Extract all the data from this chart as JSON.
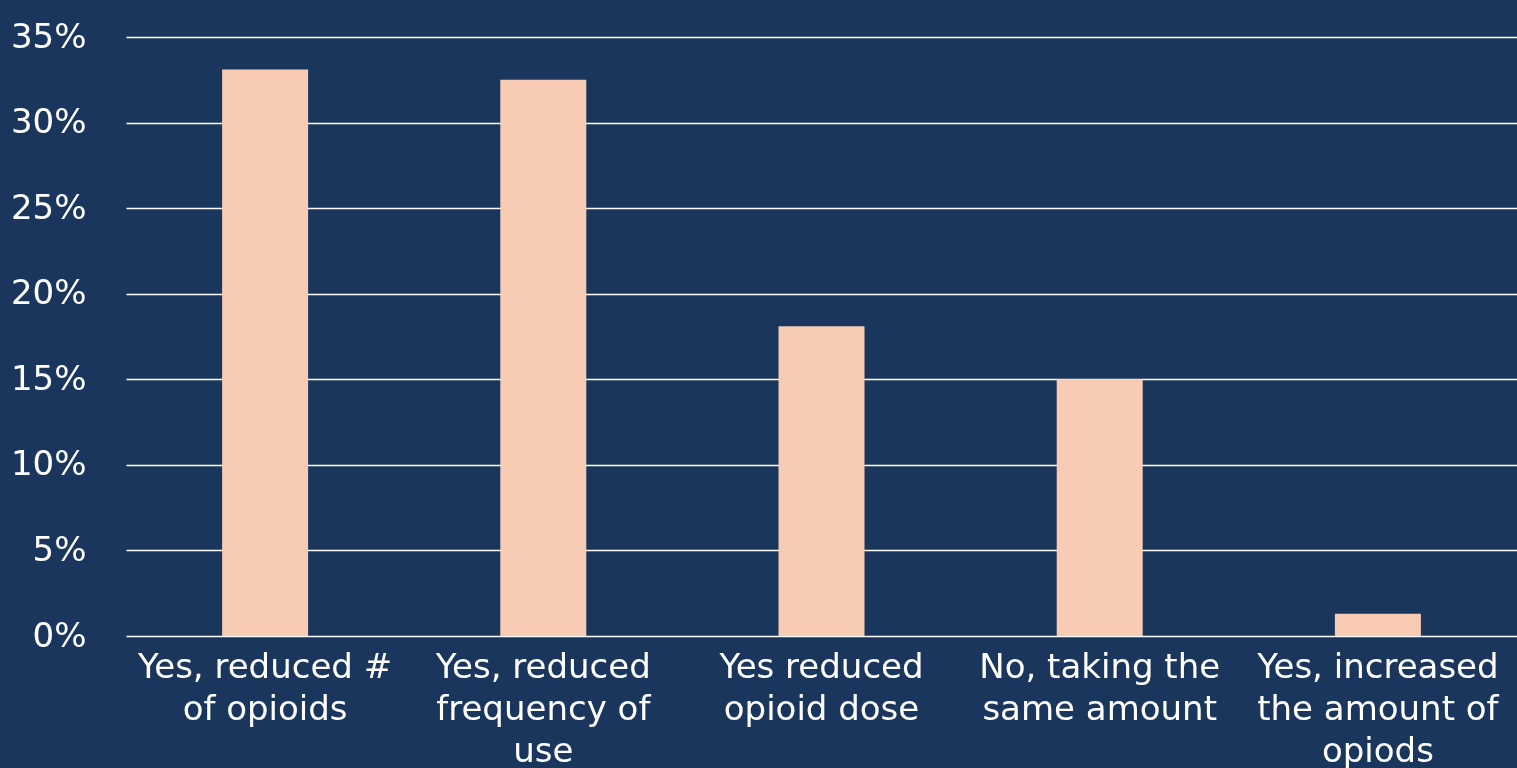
{
  "chart_data": {
    "type": "bar",
    "categories": [
      "Yes, reduced # of opioids",
      "Yes, reduced frequency of use",
      "Yes reduced opioid dose",
      "No, taking the same amount",
      "Yes, increased the amount of opiods"
    ],
    "values": [
      33.1,
      32.5,
      18.1,
      15.0,
      1.3
    ],
    "color": "#f8cbb4",
    "ylim": [
      0,
      35
    ],
    "yticks": [
      {
        "value": 0,
        "label": "0%"
      },
      {
        "value": 5,
        "label": "5%"
      },
      {
        "value": 10,
        "label": "10%"
      },
      {
        "value": 15,
        "label": "15%"
      },
      {
        "value": 20,
        "label": "20%"
      },
      {
        "value": 25,
        "label": "25%"
      },
      {
        "value": 30,
        "label": "30%"
      },
      {
        "value": 35,
        "label": "35%"
      }
    ],
    "grid": "y"
  }
}
